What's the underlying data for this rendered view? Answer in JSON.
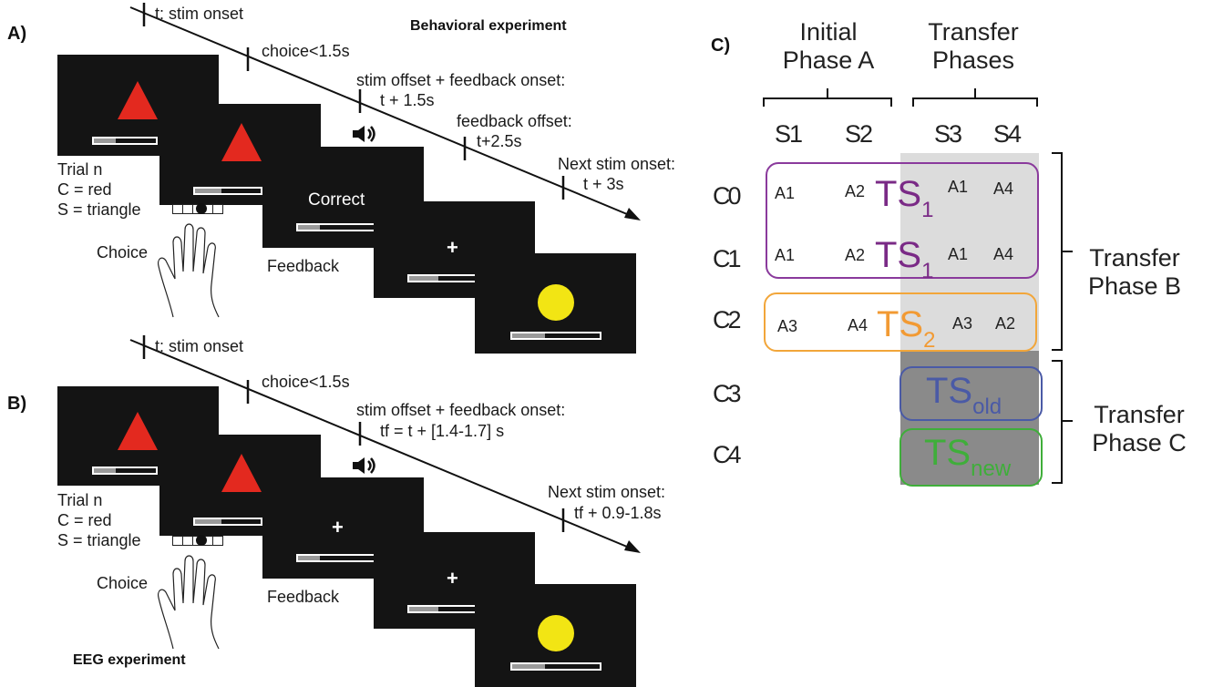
{
  "panelA": {
    "letter": "A)",
    "title": "Behavioral experiment",
    "timeline": [
      "t: stim onset",
      "choice<1.5s",
      "stim offset + feedback onset:",
      "t + 1.5s",
      "feedback offset:",
      "t+2.5s",
      "Next stim onset:",
      "t + 3s"
    ],
    "trial": [
      "Trial n",
      "C = red",
      "S = triangle"
    ],
    "choice": "Choice",
    "feedback_label": "Feedback",
    "feedback_word": "Correct",
    "cross": "+"
  },
  "panelB": {
    "letter": "B)",
    "title": "EEG experiment",
    "timeline": [
      "t: stim onset",
      "choice<1.5s",
      "stim offset + feedback onset:",
      "tf = t + [1.4-1.7] s",
      "Next stim onset:",
      "tf + 0.9-1.8s"
    ],
    "trial": [
      "Trial n",
      "C = red",
      "S = triangle"
    ],
    "choice": "Choice",
    "feedback_label": "Feedback",
    "cross": "+"
  },
  "panelC": {
    "letter": "C)",
    "header_initial": [
      "Initial",
      "Phase A"
    ],
    "header_transfer": [
      "Transfer",
      "Phases"
    ],
    "stimuli": [
      "S1",
      "S2",
      "S3",
      "S4"
    ],
    "contexts": [
      "C0",
      "C1",
      "C2",
      "C3",
      "C4"
    ],
    "rows": [
      [
        "A1",
        "A2",
        "A1",
        "A4"
      ],
      [
        "A1",
        "A2",
        "A1",
        "A4"
      ],
      [
        "A3",
        "A4",
        "A3",
        "A2"
      ]
    ],
    "ts": [
      {
        "base": "TS",
        "sub": "1",
        "color": "#7a2a86"
      },
      {
        "base": "TS",
        "sub": "1",
        "color": "#7a2a86"
      },
      {
        "base": "TS",
        "sub": "2",
        "color": "#f29a33"
      },
      {
        "base": "TS",
        "sub": "old",
        "color": "#4a5aa6"
      },
      {
        "base": "TS",
        "sub": "new",
        "color": "#3fae3a"
      }
    ],
    "phaseB": [
      "Transfer",
      "Phase B"
    ],
    "phaseC": [
      "Transfer",
      "Phase C"
    ],
    "colors": {
      "purple": "#8a3a9c",
      "orange": "#f2a63a",
      "blue": "#4a5aa6",
      "green": "#3fae3a",
      "light_gray": "#dcdcdc",
      "dark_gray": "#8a8a8a"
    }
  }
}
